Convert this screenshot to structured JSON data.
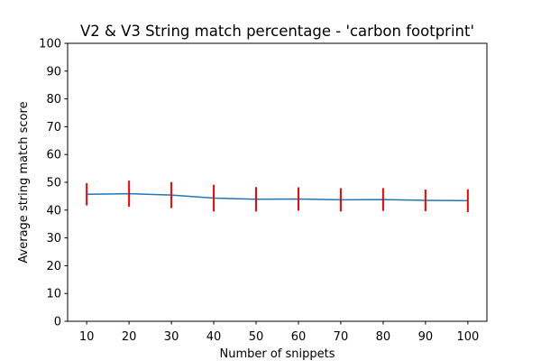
{
  "chart_data": {
    "type": "line",
    "title": "V2 & V3 String match percentage - 'carbon footprint'",
    "xlabel": "Number of snippets",
    "ylabel": "Average string match score",
    "x": [
      10,
      20,
      30,
      40,
      50,
      60,
      70,
      80,
      90,
      100
    ],
    "series": [
      {
        "values": [
          45.7,
          45.9,
          45.4,
          44.3,
          43.9,
          44.0,
          43.7,
          43.8,
          43.5,
          43.4
        ],
        "error": [
          4.0,
          4.7,
          4.7,
          4.8,
          4.4,
          4.2,
          4.2,
          4.1,
          3.9,
          4.1
        ],
        "line_color": "#1f77b4",
        "error_color": "#ff0000"
      }
    ],
    "xticks": [
      10,
      20,
      30,
      40,
      50,
      60,
      70,
      80,
      90,
      100
    ],
    "yticks": [
      0,
      10,
      20,
      30,
      40,
      50,
      60,
      70,
      80,
      90,
      100
    ],
    "xlim": [
      5.5,
      104.5
    ],
    "ylim": [
      0,
      100
    ],
    "grid": false
  }
}
